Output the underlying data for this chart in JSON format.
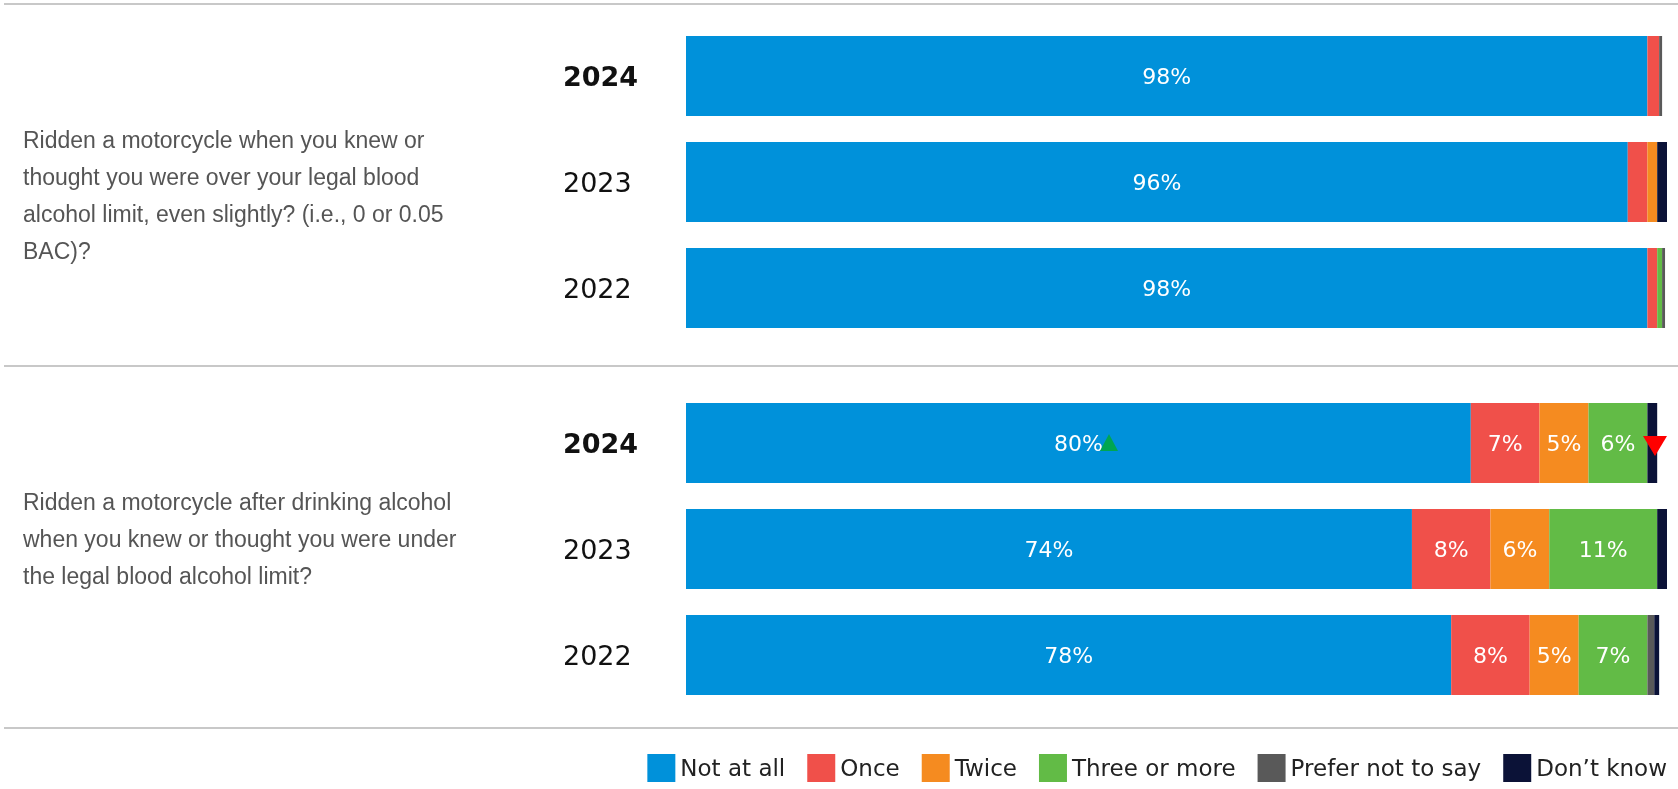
{
  "chart_data": [
    {
      "type": "bar",
      "orientation": "horizontal",
      "stacked": true,
      "title": "Ridden a motorcycle when you knew or thought you were over your legal blood alcohol limit, even slightly? (i.e., 0 or 0.05 BAC)?",
      "categories": [
        "2024",
        "2023",
        "2022"
      ],
      "xlim": [
        0,
        100
      ],
      "tick_labels": "y",
      "legend": false,
      "series": [
        {
          "color": "#0091da",
          "values": [
            98,
            96,
            98
          ],
          "value_labels": [
            "98%",
            "96%",
            "98%"
          ]
        },
        {
          "color": "#f0504a",
          "values": [
            1.2,
            2,
            1
          ],
          "value_labels": [
            null,
            null,
            null
          ]
        },
        {
          "color": "#f58b20",
          "values": [
            0,
            1,
            0
          ],
          "value_labels": [
            null,
            null,
            null
          ]
        },
        {
          "color": "#62bb46",
          "values": [
            0,
            0,
            0.5
          ],
          "value_labels": [
            null,
            null,
            null
          ]
        },
        {
          "color": "#595959",
          "values": [
            0.3,
            0,
            0.3
          ],
          "value_labels": [
            null,
            null,
            null
          ]
        },
        {
          "color": "#0b1237",
          "values": [
            0,
            1,
            0
          ],
          "value_labels": [
            null,
            null,
            null
          ]
        }
      ]
    },
    {
      "type": "bar",
      "orientation": "horizontal",
      "stacked": true,
      "title": "Ridden a motorcycle after drinking alcohol when you knew or thought you were under the legal blood alcohol limit?",
      "categories": [
        "2024",
        "2023",
        "2022"
      ],
      "xlim": [
        0,
        100
      ],
      "tick_labels": "y",
      "legend": "bottom right",
      "series": [
        {
          "name": "Not at all",
          "color": "#0091da",
          "values": [
            80,
            74,
            78
          ],
          "value_labels": [
            "80%",
            "74%",
            "78%"
          ]
        },
        {
          "name": "Once",
          "color": "#f0504a",
          "values": [
            7,
            8,
            8
          ],
          "value_labels": [
            "7%",
            "8%",
            "8%"
          ]
        },
        {
          "name": "Twice",
          "color": "#f58b20",
          "values": [
            5,
            6,
            5
          ],
          "value_labels": [
            "5%",
            "6%",
            "5%"
          ]
        },
        {
          "name": "Three or more",
          "color": "#62bb46",
          "values": [
            6,
            11,
            7
          ],
          "value_labels": [
            "6%",
            "11%",
            "7%"
          ]
        },
        {
          "name": "Prefer not to say",
          "color": "#595959",
          "values": [
            0,
            0,
            0.7
          ],
          "value_labels": [
            null,
            null,
            null
          ]
        },
        {
          "name": "Don’t know",
          "color": "#0b1237",
          "values": [
            1,
            1,
            0.5
          ],
          "value_labels": [
            null,
            null,
            null
          ]
        }
      ]
    }
  ]
}
